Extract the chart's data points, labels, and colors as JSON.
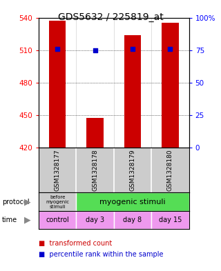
{
  "title": "GDS5632 / 225819_at",
  "samples": [
    "GSM1328177",
    "GSM1328178",
    "GSM1328179",
    "GSM1328180"
  ],
  "bar_values": [
    537.0,
    447.0,
    524.0,
    535.0
  ],
  "bar_bottom": 420.0,
  "percentile_values": [
    76.0,
    75.0,
    76.0,
    76.0
  ],
  "ylim_left": [
    420,
    540
  ],
  "ylim_right": [
    0,
    100
  ],
  "yticks_left": [
    420,
    450,
    480,
    510,
    540
  ],
  "yticks_right": [
    0,
    25,
    50,
    75,
    100
  ],
  "ytick_labels_right": [
    "0",
    "25",
    "50",
    "75",
    "100%"
  ],
  "bar_color": "#cc0000",
  "dot_color": "#0000cc",
  "protocol_labels": [
    "before\nmyogenic\nstimuli",
    "myogenic stimuli"
  ],
  "protocol_colors": [
    "#cccccc",
    "#55dd55"
  ],
  "time_labels": [
    "control",
    "day 3",
    "day 8",
    "day 15"
  ],
  "time_colors": [
    "#ee99ee",
    "#ee99ee",
    "#ee99ee",
    "#ee99ee"
  ],
  "legend_bar_color": "#cc0000",
  "legend_dot_color": "#0000cc",
  "bg_color": "#ffffff",
  "plot_bg_color": "#ffffff",
  "grid_color": "#000000",
  "title_fontsize": 10,
  "tick_fontsize": 7.5,
  "sample_fontsize": 6.5,
  "label_fontsize": 7
}
